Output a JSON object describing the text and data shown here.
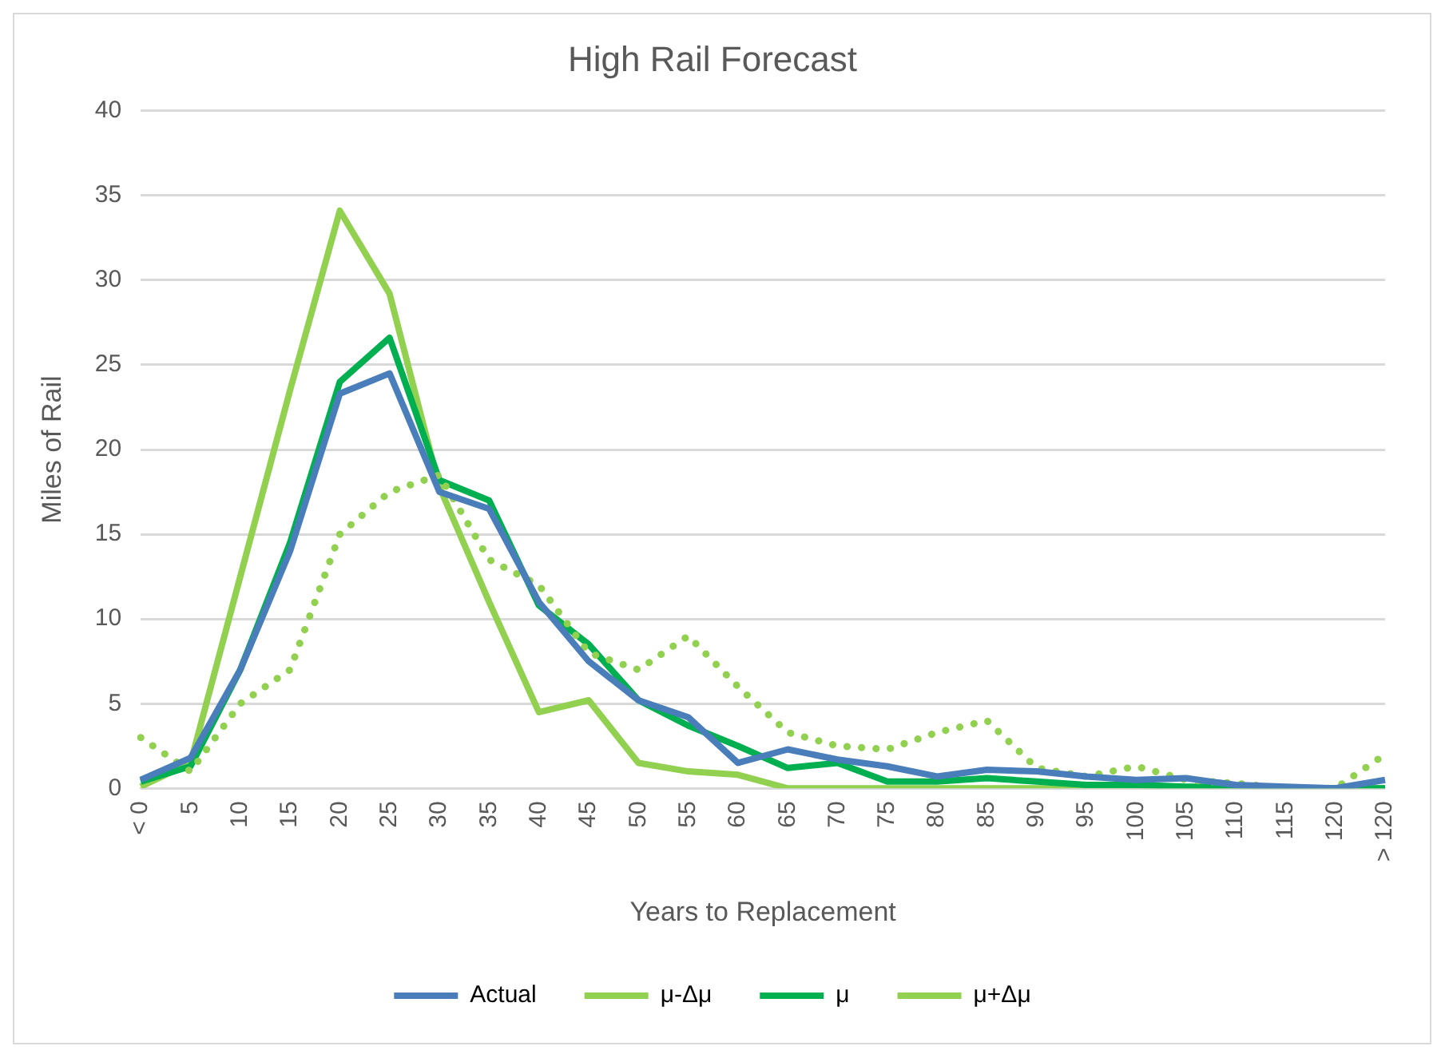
{
  "chart_data": {
    "type": "line",
    "title": "High Rail Forecast",
    "xlabel": "Years to Replacement",
    "ylabel": "Miles of Rail",
    "categories": [
      "< 0",
      "5",
      "10",
      "15",
      "20",
      "25",
      "30",
      "35",
      "40",
      "45",
      "50",
      "55",
      "60",
      "65",
      "70",
      "75",
      "80",
      "85",
      "90",
      "95",
      "100",
      "105",
      "110",
      "115",
      "120",
      "> 120"
    ],
    "series": [
      {
        "name": "Actual",
        "color": "#4a7ebb",
        "line_style": "solid",
        "values": [
          0.5,
          1.8,
          7,
          14,
          23.3,
          24.5,
          17.5,
          16.5,
          11,
          7.5,
          5.2,
          4.2,
          1.5,
          2.3,
          1.7,
          1.3,
          0.7,
          1.1,
          1,
          0.7,
          0.5,
          0.6,
          0.2,
          0.1,
          0,
          0.5
        ]
      },
      {
        "name": "μ-Δμ",
        "color": "#92d050",
        "line_style": "dotted",
        "values": [
          3,
          1,
          5,
          7,
          15,
          17.5,
          18.5,
          13.5,
          12,
          8,
          7,
          9,
          6,
          3.3,
          2.5,
          2.3,
          3.3,
          4,
          1.2,
          0.7,
          1.3,
          0.5,
          0.3,
          0,
          0,
          2
        ]
      },
      {
        "name": "μ",
        "color": "#00b050",
        "line_style": "solid",
        "values": [
          0.4,
          1.3,
          7,
          14.5,
          24,
          26.6,
          18.2,
          17,
          10.8,
          8.5,
          5.2,
          3.7,
          2.5,
          1.2,
          1.5,
          0.4,
          0.4,
          0.6,
          0.4,
          0.2,
          0.2,
          0.1,
          0.1,
          0,
          0,
          0
        ]
      },
      {
        "name": "μ+Δμ",
        "color": "#92d050",
        "line_style": "solid",
        "values": [
          0.1,
          1.5,
          12.5,
          23.5,
          34.1,
          29.2,
          17.8,
          11,
          4.5,
          5.2,
          1.5,
          1,
          0.8,
          0,
          0,
          0,
          0,
          0,
          0,
          0,
          0,
          0,
          0,
          0,
          0,
          0
        ]
      }
    ],
    "ylim": [
      0,
      40
    ],
    "yticks": [
      0,
      5,
      10,
      15,
      20,
      25,
      30,
      35,
      40
    ],
    "grid": "y",
    "legend": "bottom",
    "marker": "none"
  }
}
